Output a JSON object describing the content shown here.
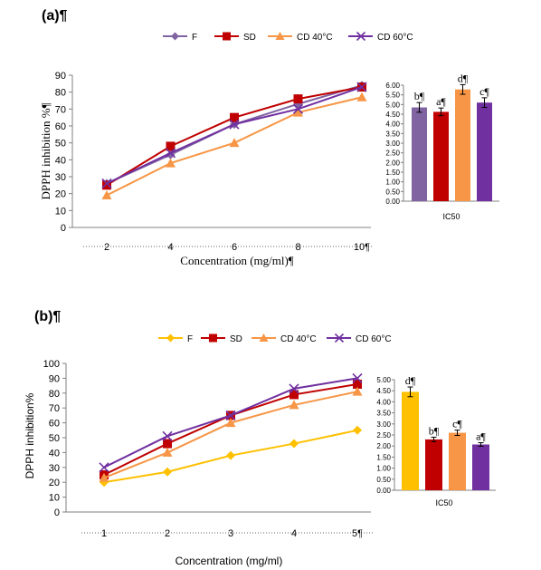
{
  "panels": [
    {
      "label": "(a)¶",
      "legend": [
        "F",
        "SD",
        "CD 40°C",
        "CD 60°C"
      ],
      "ylabel": "DPPH inhibition %¶",
      "xlabel": "Concentration (mg/ml)¶",
      "x_tick_labels": [
        "2",
        "4",
        "6",
        "8",
        "10¶"
      ],
      "inset_xlabel": "IC50"
    },
    {
      "label": "(b)¶",
      "legend": [
        "F",
        "SD",
        "CD 40°C",
        "CD 60°C"
      ],
      "ylabel": "DPPH inhibition%",
      "xlabel": "Concentration (mg/ml)",
      "x_tick_labels": [
        "1",
        "2",
        "3",
        "4",
        "5¶"
      ],
      "inset_xlabel": "IC50"
    }
  ],
  "colors": {
    "F_a": "#8064a2",
    "F_b": "#ffc000",
    "SD": "#c00000",
    "CD40": "#f79646",
    "CD60": "#7030a0"
  },
  "chart_data": [
    {
      "type": "line",
      "xlabel": "Concentration (mg/ml)¶",
      "ylabel": "DPPH inhibition %¶",
      "x": [
        2,
        4,
        6,
        8,
        10
      ],
      "ylim": [
        0,
        90
      ],
      "y_ticks": [
        0,
        10,
        20,
        30,
        40,
        50,
        60,
        70,
        80,
        90
      ],
      "series": [
        {
          "name": "F",
          "marker": "diamond",
          "values": [
            26,
            43,
            61,
            73,
            84
          ]
        },
        {
          "name": "SD",
          "marker": "square",
          "values": [
            25,
            48,
            65,
            76,
            83
          ]
        },
        {
          "name": "CD 40°C",
          "marker": "triangle",
          "values": [
            19,
            38,
            50,
            68,
            77
          ]
        },
        {
          "name": "CD 60°C",
          "marker": "x",
          "values": [
            26,
            44,
            61,
            70,
            83
          ]
        }
      ],
      "legend_position": "top"
    },
    {
      "type": "bar",
      "xlabel": "IC50",
      "ylim": [
        0,
        6
      ],
      "y_ticks": [
        "0.00",
        "0.50",
        "1.00",
        "1.50",
        "2.00",
        "2.50",
        "3.00",
        "3.50",
        "4.00",
        "4.50",
        "5.00",
        "5.50",
        "6.00"
      ],
      "categories": [
        "F",
        "SD",
        "CD 40°C",
        "CD 60°C"
      ],
      "values": [
        4.85,
        4.62,
        5.78,
        5.1
      ],
      "errors": [
        0.25,
        0.2,
        0.25,
        0.25
      ],
      "letters": [
        "b¶",
        "a¶",
        "d¶",
        "c¶"
      ]
    },
    {
      "type": "line",
      "xlabel": "Concentration (mg/ml)",
      "ylabel": "DPPH inhibition%",
      "x": [
        1,
        2,
        3,
        4,
        5
      ],
      "ylim": [
        0,
        100
      ],
      "y_ticks": [
        0,
        10,
        20,
        30,
        40,
        50,
        60,
        70,
        80,
        90,
        100
      ],
      "series": [
        {
          "name": "F",
          "marker": "diamond",
          "values": [
            20,
            27,
            38,
            46,
            55
          ]
        },
        {
          "name": "SD",
          "marker": "square",
          "values": [
            25,
            46,
            65,
            79,
            86
          ]
        },
        {
          "name": "CD 40°C",
          "marker": "triangle",
          "values": [
            23,
            40,
            60,
            72,
            81
          ]
        },
        {
          "name": "CD 60°C",
          "marker": "x",
          "values": [
            30,
            51,
            65,
            83,
            90
          ]
        }
      ],
      "legend_position": "top"
    },
    {
      "type": "bar",
      "xlabel": "IC50",
      "ylim": [
        0,
        5
      ],
      "y_ticks": [
        "0.00",
        "0.50",
        "1.00",
        "1.50",
        "2.00",
        "2.50",
        "3.00",
        "3.50",
        "4.00",
        "4.50",
        "5.00"
      ],
      "categories": [
        "F",
        "SD",
        "CD 40°C",
        "CD 60°C"
      ],
      "values": [
        4.45,
        2.3,
        2.6,
        2.07
      ],
      "errors": [
        0.22,
        0.1,
        0.12,
        0.08
      ],
      "letters": [
        "d¶",
        "b¶",
        "c¶",
        "a¶"
      ]
    }
  ]
}
